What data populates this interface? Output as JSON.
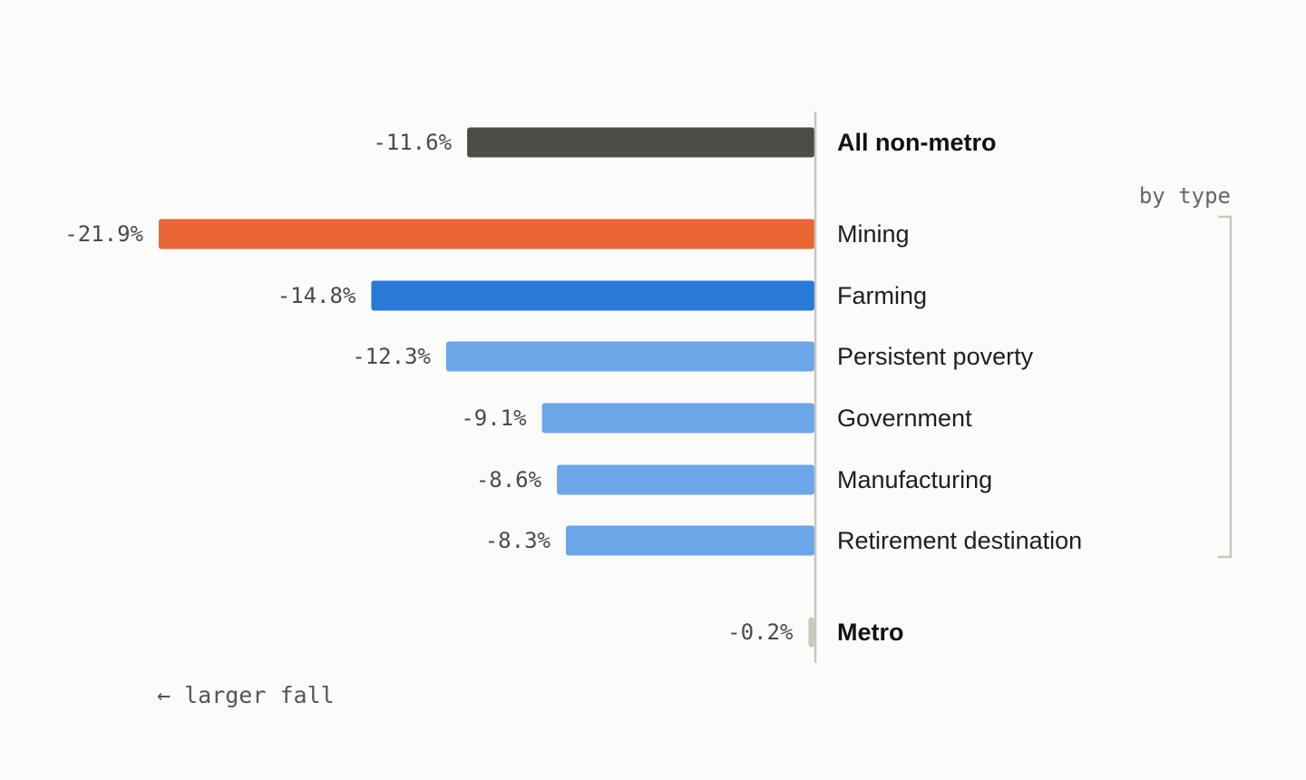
{
  "chart_data": {
    "type": "bar",
    "orientation": "horizontal",
    "categories": [
      "All non-metro",
      "Mining",
      "Farming",
      "Persistent poverty",
      "Government",
      "Manufacturing",
      "Retirement destination",
      "Metro"
    ],
    "values": [
      -11.6,
      -21.9,
      -14.8,
      -12.3,
      -9.1,
      -8.6,
      -8.3,
      -0.2
    ],
    "value_labels": [
      "-11.6%",
      "-21.9%",
      "-14.8%",
      "-12.3%",
      "-9.1%",
      "-8.6%",
      "-8.3%",
      "-0.2%"
    ],
    "emphasized_categories": [
      "All non-metro",
      "Metro"
    ],
    "bar_colors": [
      "#4d4c48",
      "#ea6735",
      "#2879d8",
      "#6ba6e9",
      "#6ba6e9",
      "#6ba6e9",
      "#6ba6e9",
      "#c9c8bc"
    ],
    "group_label": "by type",
    "group_members": [
      "Mining",
      "Farming",
      "Persistent poverty",
      "Government",
      "Manufacturing",
      "Retirement destination"
    ],
    "direction_note": "← larger fall",
    "xlim": [
      -21.9,
      0
    ],
    "grid": false,
    "legend": "none"
  },
  "colors": {
    "background": "#fbfbfa",
    "axis": "#c9c8bc",
    "bracket": "#c9c8bc"
  }
}
